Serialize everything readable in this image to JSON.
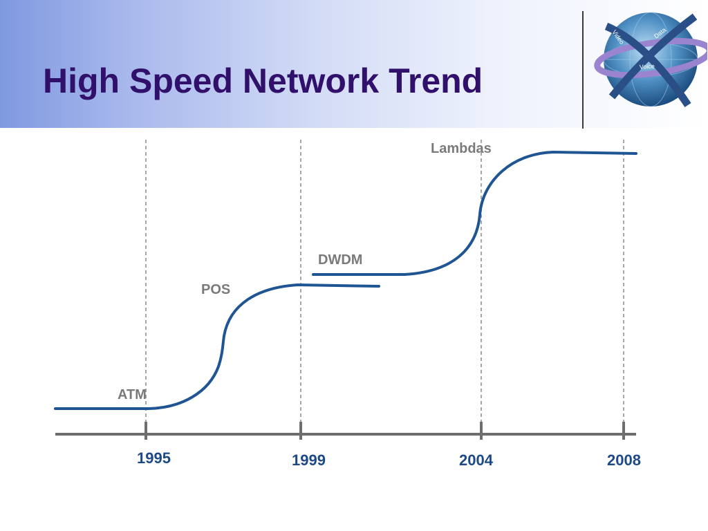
{
  "slide": {
    "title": "High Speed Network Trend"
  },
  "logo": {
    "name": "globe-logo-icon",
    "words": [
      "Video",
      "Data",
      "Voice"
    ]
  },
  "timeline": {
    "years": [
      "1995",
      "1999",
      "2004",
      "2008"
    ],
    "technologies": [
      "ATM",
      "POS",
      "DWDM",
      "Lambdas"
    ]
  },
  "colors": {
    "title": "#30106a",
    "curve": "#1f5592",
    "axis": "#6e6e6e",
    "year_labels": "#1d4a86",
    "tech_labels": "#7a7a7a"
  }
}
